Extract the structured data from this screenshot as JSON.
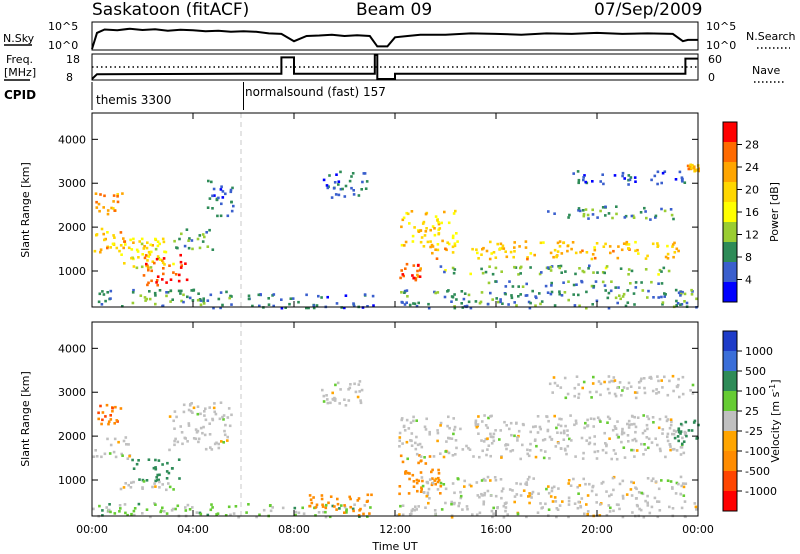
{
  "header": {
    "title": "Saskatoon (fitACF)",
    "beam": "Beam 09",
    "date": "07/Sep/2009"
  },
  "summary": {
    "nsky_label": "N.Sky",
    "nsearch_label": "N.Search",
    "freq_label_line1": "Freq.",
    "freq_label_line2": "[MHz]",
    "nave_label": "Nave",
    "cpid_label": "CPID",
    "nsky_ticks": [
      "10^5",
      "10^0"
    ],
    "nsearch_ticks": [
      "10^5",
      "10^0"
    ],
    "freq_ticks": [
      "18",
      "8"
    ],
    "nave_ticks": [
      "60",
      "0"
    ],
    "cpid_segments": [
      {
        "label": "themis 3300",
        "start_hour": 0
      },
      {
        "label": "normalsound (fast) 157",
        "start_hour": 6
      }
    ]
  },
  "colorbars": {
    "power": {
      "label": "Power [dB]",
      "ticks": [
        "28",
        "24",
        "20",
        "16",
        "12",
        "8",
        "4"
      ],
      "colors": [
        "#ff0000",
        "#ff6a00",
        "#ffa500",
        "#ffd700",
        "#ffff00",
        "#9acd32",
        "#2e8b57",
        "#3a5fcd",
        "#0000ff"
      ]
    },
    "velocity": {
      "label_main": "Velocity [m s",
      "label_sup": "-1",
      "label_end": "]",
      "ticks": [
        "1000",
        "500",
        "100",
        "25",
        "-25",
        "-100",
        "-500",
        "-1000"
      ],
      "colors": [
        "#1e3cc8",
        "#3a6ed8",
        "#2e8b57",
        "#66cc33",
        "#c0c0c0",
        "#ffa500",
        "#ff8c00",
        "#ff4500",
        "#ff0000"
      ]
    }
  },
  "chart_data": [
    {
      "type": "line",
      "name": "N.Sky / N.Search",
      "x": [
        0.0,
        0.2,
        0.5,
        1.0,
        1.5,
        2.0,
        2.5,
        3.0,
        3.5,
        4.0,
        4.5,
        5.0,
        5.5,
        6.0,
        6.5,
        7.0,
        7.5,
        8.0,
        8.5,
        9.0,
        9.5,
        10.0,
        10.5,
        11.0,
        11.3,
        11.7,
        12.0,
        12.5,
        13.0,
        14.0,
        15.0,
        16.0,
        17.0,
        18.0,
        19.0,
        20.0,
        21.0,
        22.0,
        23.0,
        23.4,
        23.6,
        24.0
      ],
      "y_frac": [
        0.0,
        0.62,
        0.75,
        0.72,
        0.78,
        0.73,
        0.76,
        0.7,
        0.74,
        0.72,
        0.68,
        0.7,
        0.66,
        0.68,
        0.66,
        0.6,
        0.58,
        0.3,
        0.5,
        0.52,
        0.55,
        0.5,
        0.53,
        0.5,
        0.1,
        0.1,
        0.45,
        0.5,
        0.55,
        0.55,
        0.6,
        0.58,
        0.55,
        0.6,
        0.58,
        0.62,
        0.58,
        0.6,
        0.58,
        0.3,
        0.35,
        0.35
      ],
      "yticks": [
        "10^5",
        "10^0"
      ]
    },
    {
      "type": "line",
      "name": "Freq. / Nave",
      "freq_mhz": {
        "x": [
          0.0,
          0.2,
          6.0,
          7.5,
          7.5,
          8.0,
          8.0,
          11.2,
          11.2,
          11.3,
          11.3,
          12.0,
          12.0,
          23.5,
          23.5,
          24.0
        ],
        "y": [
          8.0,
          10.0,
          10.2,
          10.2,
          17.0,
          17.0,
          10.2,
          10.2,
          18.0,
          18.0,
          8.0,
          8.0,
          10.2,
          10.2,
          16.5,
          16.5
        ]
      },
      "nave_dotted_y_frac": 0.5,
      "freq_range": [
        8,
        18
      ],
      "nave_range": [
        0,
        60
      ]
    },
    {
      "type": "heatmap",
      "name": "Power",
      "xlabel": "",
      "ylabel": "Slant Range [km]",
      "xlim": [
        0,
        24
      ],
      "ylim": [
        180,
        4600
      ],
      "yticks": [
        1000,
        2000,
        3000,
        4000
      ],
      "cbar_range": [
        0,
        30
      ],
      "regions": [
        {
          "t0": 0.0,
          "t1": 1.3,
          "r0": 1400,
          "r1": 2000,
          "v": 20
        },
        {
          "t0": 0.0,
          "t1": 1.2,
          "r0": 2300,
          "r1": 2800,
          "v": 22
        },
        {
          "t0": 0.3,
          "t1": 2.8,
          "r0": 1500,
          "r1": 1800,
          "v": 18
        },
        {
          "t0": 1.2,
          "t1": 3.2,
          "r0": 1100,
          "r1": 1700,
          "v": 16
        },
        {
          "t0": 2.0,
          "t1": 3.8,
          "r0": 700,
          "r1": 1400,
          "v": 26
        },
        {
          "t0": 3.2,
          "t1": 4.8,
          "r0": 1500,
          "r1": 2000,
          "v": 10
        },
        {
          "t0": 4.5,
          "t1": 5.6,
          "r0": 2200,
          "r1": 3100,
          "v": 6
        },
        {
          "t0": 0.0,
          "t1": 5.5,
          "r0": 180,
          "r1": 600,
          "v": 8
        },
        {
          "t0": 9.0,
          "t1": 10.9,
          "r0": 2700,
          "r1": 3300,
          "v": 6
        },
        {
          "t0": 6.0,
          "t1": 11.1,
          "r0": 180,
          "r1": 500,
          "v": 6
        },
        {
          "t0": 12.1,
          "t1": 13.0,
          "r0": 800,
          "r1": 1200,
          "v": 26
        },
        {
          "t0": 12.2,
          "t1": 14.5,
          "r0": 1600,
          "r1": 2400,
          "v": 18
        },
        {
          "t0": 13.0,
          "t1": 23.4,
          "r0": 1300,
          "r1": 1700,
          "v": 20
        },
        {
          "t0": 13.5,
          "t1": 23.5,
          "r0": 950,
          "r1": 1150,
          "v": 10
        },
        {
          "t0": 15.0,
          "t1": 23.0,
          "r0": 650,
          "r1": 800,
          "v": 8
        },
        {
          "t0": 18.0,
          "t1": 23.0,
          "r0": 2200,
          "r1": 2500,
          "v": 8
        },
        {
          "t0": 19.0,
          "t1": 23.5,
          "r0": 3000,
          "r1": 3300,
          "v": 6
        },
        {
          "t0": 23.5,
          "t1": 24.0,
          "r0": 3300,
          "r1": 3450,
          "v": 20
        },
        {
          "t0": 12.0,
          "t1": 24.0,
          "r0": 180,
          "r1": 600,
          "v": 8
        }
      ]
    },
    {
      "type": "heatmap",
      "name": "Velocity",
      "xlabel": "Time UT",
      "ylabel": "Slant Range [km]",
      "xlim": [
        0,
        24
      ],
      "ylim": [
        180,
        4600
      ],
      "yticks": [
        1000,
        2000,
        3000,
        4000
      ],
      "xticks": [
        "00:00",
        "04:00",
        "08:00",
        "12:00",
        "16:00",
        "20:00",
        "00:00"
      ],
      "regions": [
        {
          "t0": 0.2,
          "t1": 1.3,
          "r0": 2300,
          "r1": 2800,
          "v": -300
        },
        {
          "t0": 0.0,
          "t1": 1.5,
          "r0": 1500,
          "r1": 2000,
          "v": 0
        },
        {
          "t0": 1.5,
          "t1": 3.5,
          "r0": 1000,
          "r1": 1500,
          "v": 100
        },
        {
          "t0": 3.0,
          "t1": 5.5,
          "r0": 1700,
          "r1": 2800,
          "v": 0
        },
        {
          "t0": 1.0,
          "t1": 4.0,
          "r0": 800,
          "r1": 1000,
          "v": 0
        },
        {
          "t0": 0.0,
          "t1": 11.1,
          "r0": 180,
          "r1": 500,
          "v": 40
        },
        {
          "t0": 9.0,
          "t1": 10.9,
          "r0": 2700,
          "r1": 3300,
          "v": 0
        },
        {
          "t0": 8.5,
          "t1": 11.1,
          "r0": 200,
          "r1": 700,
          "v": -150
        },
        {
          "t0": 12.1,
          "t1": 13.8,
          "r0": 700,
          "r1": 1600,
          "v": -200
        },
        {
          "t0": 12.1,
          "t1": 23.5,
          "r0": 1500,
          "r1": 2500,
          "v": 0
        },
        {
          "t0": 13.0,
          "t1": 23.5,
          "r0": 600,
          "r1": 1100,
          "v": 0
        },
        {
          "t0": 18.0,
          "t1": 23.8,
          "r0": 2900,
          "r1": 3400,
          "v": 0
        },
        {
          "t0": 23.0,
          "t1": 24.0,
          "r0": 1800,
          "r1": 2400,
          "v": 150
        },
        {
          "t0": 12.0,
          "t1": 24.0,
          "r0": 180,
          "r1": 550,
          "v": 0
        }
      ]
    }
  ]
}
